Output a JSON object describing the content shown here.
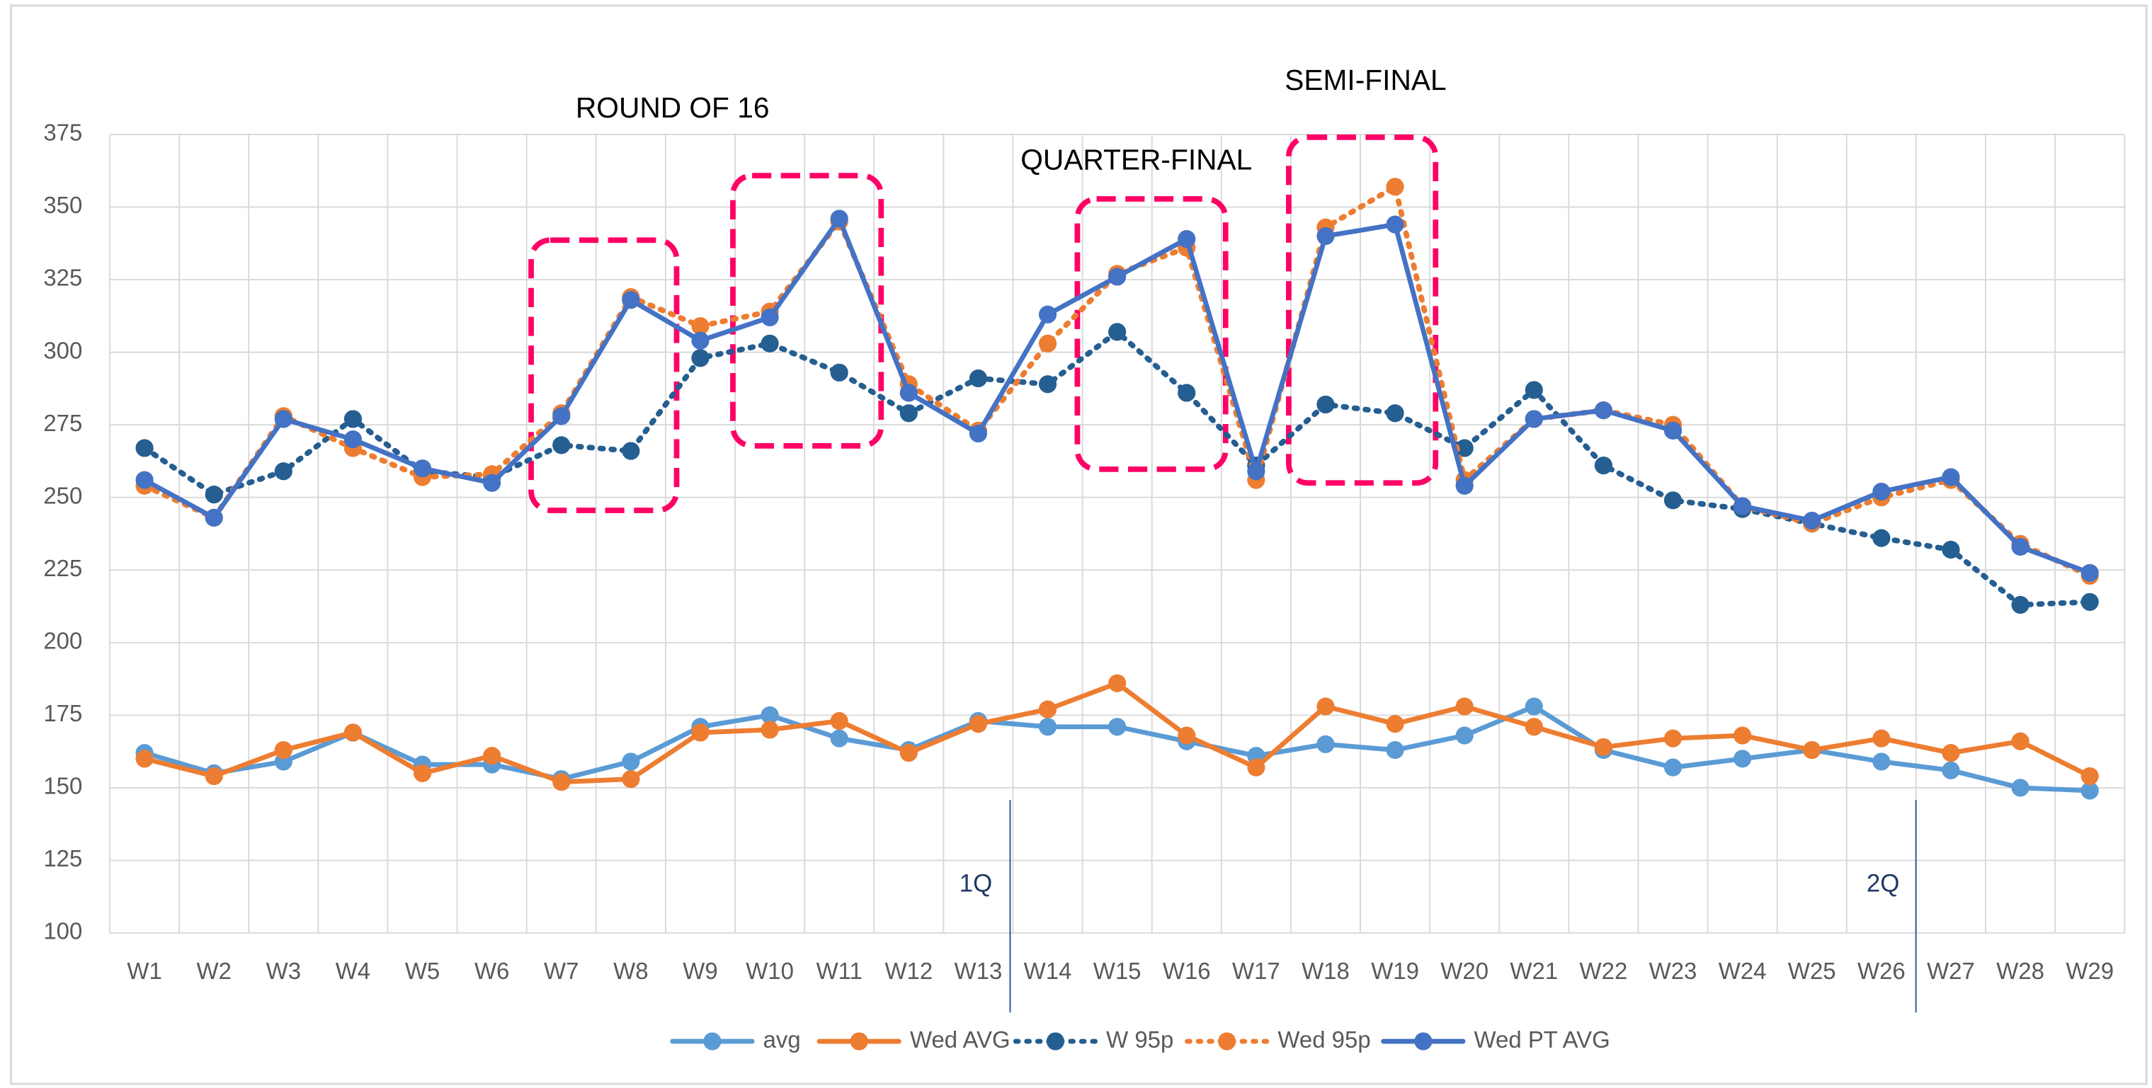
{
  "chart_data": {
    "type": "line",
    "categories": [
      "W1",
      "W2",
      "W3",
      "W4",
      "W5",
      "W6",
      "W7",
      "W8",
      "W9",
      "W10",
      "W11",
      "W12",
      "W13",
      "W14",
      "W15",
      "W16",
      "W17",
      "W18",
      "W19",
      "W20",
      "W21",
      "W22",
      "W23",
      "W24",
      "W25",
      "W26",
      "W27",
      "W28",
      "W29"
    ],
    "series": [
      {
        "name": "avg",
        "color": "#5b9bd5",
        "line_style": "solid",
        "values": [
          162,
          155,
          159,
          169,
          158,
          158,
          153,
          159,
          171,
          175,
          167,
          163,
          173,
          171,
          171,
          166,
          161,
          165,
          163,
          168,
          178,
          163,
          157,
          160,
          163,
          159,
          156,
          150,
          149
        ]
      },
      {
        "name": "Wed AVG",
        "color": "#ed7d31",
        "line_style": "solid",
        "values": [
          160,
          154,
          163,
          169,
          155,
          161,
          152,
          153,
          169,
          170,
          173,
          162,
          172,
          177,
          186,
          168,
          157,
          178,
          172,
          178,
          171,
          164,
          167,
          168,
          163,
          167,
          162,
          166,
          154
        ]
      },
      {
        "name": "W 95p",
        "color": "#255e91",
        "line_style": "dotted",
        "values": [
          267,
          251,
          259,
          277,
          259,
          257,
          268,
          266,
          298,
          303,
          293,
          279,
          291,
          289,
          307,
          286,
          261,
          282,
          279,
          267,
          287,
          261,
          249,
          246,
          241,
          236,
          232,
          213,
          214
        ]
      },
      {
        "name": "Wed 95p",
        "color": "#ed7d31",
        "line_style": "dotted",
        "values": [
          254,
          243,
          278,
          267,
          257,
          258,
          279,
          319,
          309,
          314,
          345,
          289,
          273,
          303,
          327,
          336,
          256,
          343,
          357,
          256,
          277,
          280,
          275,
          247,
          241,
          250,
          256,
          234,
          223
        ]
      },
      {
        "name": "Wed PT AVG",
        "color": "#4472c4",
        "line_style": "solid",
        "values": [
          256,
          243,
          277,
          270,
          260,
          255,
          278,
          318,
          304,
          312,
          346,
          286,
          272,
          313,
          326,
          339,
          259,
          340,
          344,
          254,
          277,
          280,
          273,
          247,
          242,
          252,
          257,
          233,
          224
        ]
      }
    ],
    "ylim": [
      100,
      375
    ],
    "yticks": [
      100,
      125,
      150,
      175,
      200,
      225,
      250,
      275,
      300,
      325,
      350,
      375
    ],
    "grid": true,
    "legend": "bottom",
    "annotations": [
      "ROUND OF 16",
      "QUARTER-FINAL",
      "SEMI-FINAL"
    ],
    "markers": [
      "1Q",
      "2Q"
    ]
  }
}
